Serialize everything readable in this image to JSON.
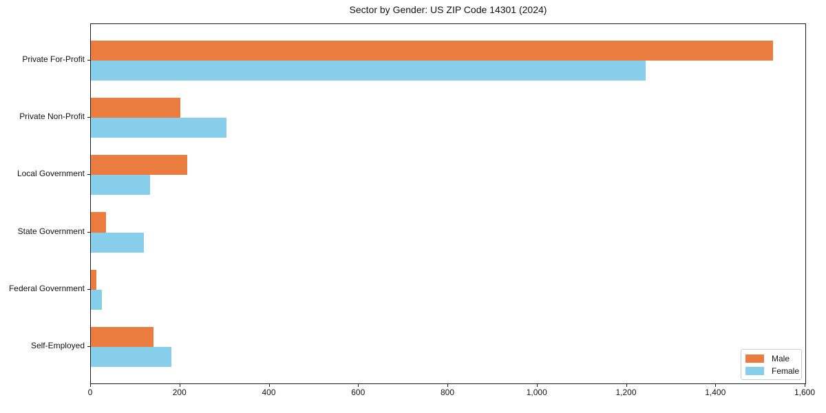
{
  "chart_data": {
    "type": "bar",
    "orientation": "horizontal",
    "title": "Sector by Gender: US ZIP Code 14301 (2024)",
    "categories": [
      "Private For-Profit",
      "Private Non-Profit",
      "Local Government",
      "State Government",
      "Federal Government",
      "Self-Employed"
    ],
    "series": [
      {
        "name": "Male",
        "color": "#e97c3e",
        "values": [
          1528,
          200,
          216,
          34,
          13,
          140
        ]
      },
      {
        "name": "Female",
        "color": "#87ceeb",
        "values": [
          1243,
          303,
          133,
          119,
          24,
          180
        ]
      }
    ],
    "xlim": [
      0,
      1600
    ],
    "x_ticks": [
      0,
      200,
      400,
      600,
      800,
      1000,
      1200,
      1400,
      1600
    ],
    "x_tick_labels": [
      "0",
      "200",
      "400",
      "600",
      "800",
      "1,000",
      "1,200",
      "1,400",
      "1,600"
    ],
    "xlabel": "",
    "ylabel": "",
    "grid": false,
    "legend_position": "lower right",
    "spine_color": "#1a1a1a"
  }
}
